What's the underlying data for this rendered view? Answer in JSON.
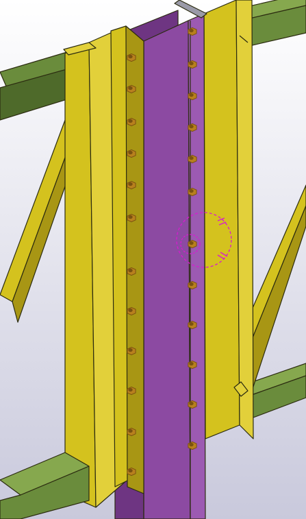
{
  "viewport": {
    "name": "3d-model-view",
    "background_top": "#ffffff",
    "background_bottom": "#c9c9dc"
  },
  "palette": {
    "outline": "#2b2b10",
    "yellow": "#d4c21e",
    "yellow_light": "#e2d03a",
    "yellow_dark": "#a89614",
    "purple": "#8c4aa2",
    "purple_dark": "#6e3582",
    "purple_light": "#9c5ab2",
    "green": "#6a8c3c",
    "green_light": "#86a84e",
    "green_dark": "#4e6a2a",
    "bolt": "#b8801e",
    "bolt_dark": "#7a5210",
    "cap": "#9a9aa8",
    "selection": "#d81ad0"
  },
  "scene_objects": {
    "bolts_left_column": 13,
    "bolts_right_column": 14,
    "selected_bolt": "bolt-right-8"
  }
}
